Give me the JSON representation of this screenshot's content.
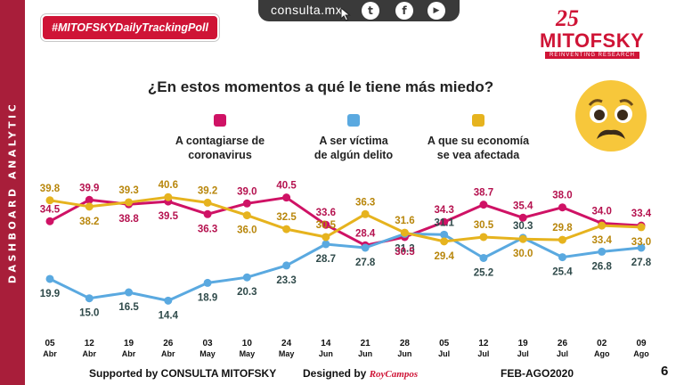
{
  "sidebar_text": "DASHBOARD ANALYTIC",
  "hashtag": "#MITOFSKYDailyTrackingPoll",
  "site": "consulta.mx",
  "social": [
    {
      "icon": "twitter-icon",
      "glyph": "t"
    },
    {
      "icon": "facebook-icon",
      "glyph": "f"
    },
    {
      "icon": "youtube-icon",
      "glyph": "▶"
    }
  ],
  "logo": {
    "anniversary": "25",
    "name": "MITOFSKY",
    "tagline": "REINVENTING RESEARCH"
  },
  "question": "¿En estos momentos a qué le tiene más miedo?",
  "colors": {
    "contagio": "#cf1265",
    "delito": "#5aa9e0",
    "economia": "#e6b31e",
    "brand": "#cf1436"
  },
  "legend": [
    {
      "line1": "A contagiarse de",
      "line2": "coronavirus"
    },
    {
      "line1": "A ser víctima",
      "line2": "de algún delito"
    },
    {
      "line1": "A que su economía",
      "line2": "se vea afectada"
    }
  ],
  "chart_data": {
    "type": "line",
    "title": "¿En estos momentos a qué le tiene más miedo?",
    "categories": [
      {
        "day": "05",
        "month": "Abr"
      },
      {
        "day": "12",
        "month": "Abr"
      },
      {
        "day": "19",
        "month": "Abr"
      },
      {
        "day": "26",
        "month": "Abr"
      },
      {
        "day": "03",
        "month": "May"
      },
      {
        "day": "10",
        "month": "May"
      },
      {
        "day": "24",
        "month": "May"
      },
      {
        "day": "14",
        "month": "Jun"
      },
      {
        "day": "21",
        "month": "Jun"
      },
      {
        "day": "28",
        "month": "Jun"
      },
      {
        "day": "05",
        "month": "Jul"
      },
      {
        "day": "12",
        "month": "Jul"
      },
      {
        "day": "19",
        "month": "Jul"
      },
      {
        "day": "26",
        "month": "Jul"
      },
      {
        "day": "02",
        "month": "Ago"
      },
      {
        "day": "09",
        "month": "Ago"
      }
    ],
    "ylim": [
      12,
      42
    ],
    "series": [
      {
        "name": "A contagiarse de coronavirus",
        "key": "contagio",
        "values": [
          34.5,
          39.9,
          38.8,
          39.5,
          36.3,
          39.0,
          40.5,
          33.6,
          28.4,
          30.5,
          34.3,
          38.7,
          35.4,
          38.0,
          34.0,
          33.4
        ]
      },
      {
        "name": "A ser víctima de algún delito",
        "key": "delito",
        "values": [
          19.9,
          15.0,
          16.5,
          14.4,
          18.9,
          20.3,
          23.3,
          28.7,
          27.8,
          31.3,
          31.1,
          25.2,
          30.3,
          25.4,
          26.8,
          27.8
        ]
      },
      {
        "name": "A que su economía se vea afectada",
        "key": "economia",
        "values": [
          39.8,
          38.2,
          39.3,
          40.6,
          39.2,
          36.0,
          32.5,
          30.5,
          36.3,
          31.6,
          29.4,
          30.5,
          30.0,
          29.8,
          33.4,
          33.0
        ]
      }
    ],
    "value_labels": {
      "contagio": [
        "34.5",
        "39.9",
        "38.8",
        "39.5",
        "36.3",
        "39.0",
        "40.5",
        "33.6",
        "28.4",
        "30.5",
        "34.3",
        "38.7",
        "35.4",
        "38.0",
        "34.0",
        "33.4"
      ],
      "delito": [
        "19.9",
        "15.0",
        "16.5",
        "14.4",
        "18.9",
        "20.3",
        "23.3",
        "28.7",
        "27.8",
        "31.3",
        "31.1",
        "25.2",
        "30.3",
        "25.4",
        "26.8",
        "27.8"
      ],
      "economia": [
        "39.8",
        "38.2",
        "39.3",
        "40.6",
        "39.2",
        "36.0",
        "32.5",
        "30.5",
        "36.3",
        "31.6",
        "29.4",
        "30.5",
        "30.0",
        "29.8",
        "33.4",
        "33.0"
      ]
    }
  },
  "footer": {
    "supported": "Supported by   CONSULTA  MITOFSKY",
    "designed": "Designed by",
    "designer": "RoyCampos",
    "period": "FEB-AGO2020",
    "page": "6"
  }
}
